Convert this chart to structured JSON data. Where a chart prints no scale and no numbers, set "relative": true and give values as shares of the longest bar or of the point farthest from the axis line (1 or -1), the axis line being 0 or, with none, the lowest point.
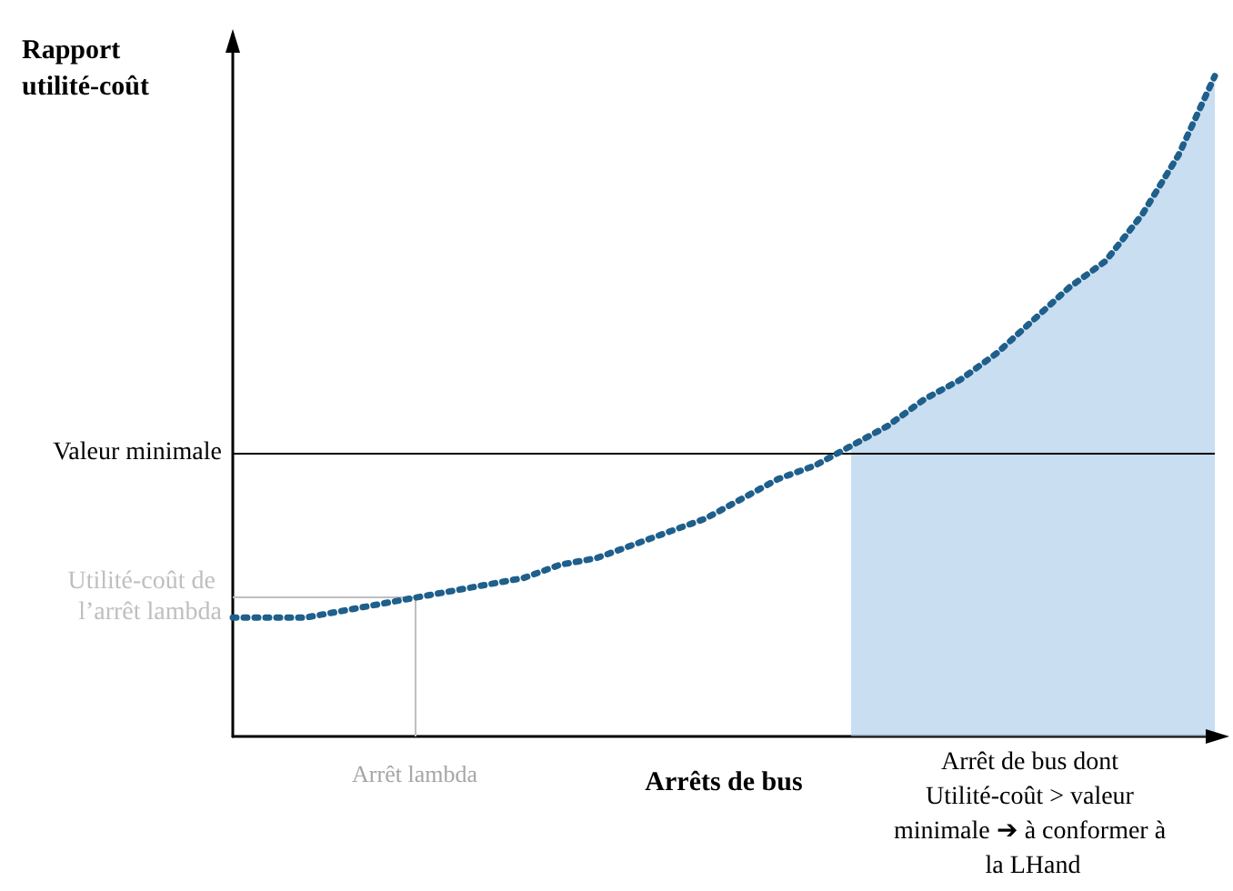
{
  "chart_data": {
    "type": "line",
    "relative": true,
    "ylabel": "Rapport utilité-coût",
    "xlabel": "Arrêts de bus",
    "categories": [
      null,
      null,
      null,
      null,
      null,
      null,
      null,
      null,
      null,
      null,
      null,
      null,
      null,
      null,
      null,
      null,
      null,
      null,
      null,
      null,
      null,
      null,
      null,
      null,
      null,
      null,
      null,
      null
    ],
    "series": [
      {
        "color": "#1f5f8b",
        "values": [
          0.18,
          0.18,
          0.18,
          0.19,
          0.2,
          0.21,
          0.22,
          0.23,
          0.24,
          0.26,
          0.27,
          0.29,
          0.31,
          0.33,
          0.36,
          0.39,
          0.41,
          0.44,
          0.47,
          0.51,
          0.54,
          0.58,
          0.63,
          0.68,
          0.72,
          0.79,
          0.88,
          1
        ]
      },
      {
        "type": "area",
        "color": "#9dc3e6",
        "values": [
          null,
          null,
          null,
          null,
          null,
          null,
          null,
          null,
          null,
          null,
          null,
          null,
          null,
          null,
          null,
          null,
          null,
          0.44,
          0.47,
          0.51,
          0.54,
          0.58,
          0.63,
          0.68,
          0.72,
          0.79,
          0.88,
          1
        ]
      }
    ],
    "ref_lines": [
      {
        "axis": "y",
        "value": 0.21,
        "label": "Utilité-coût de l’arrêt lambda",
        "color": "#bfbfbf"
      },
      {
        "axis": "x",
        "label": "Arrêt lambda",
        "color": "#bfbfbf"
      },
      {
        "axis": "y",
        "value": 0.43,
        "label": "Valeur minimale",
        "color": "#000000"
      }
    ],
    "annotations": [
      "Arrêt de bus dont Utilité-coût > valeur minimale ➔ à conformer à la LHand"
    ],
    "marker": "none",
    "line_style": "dotted",
    "grid": false
  }
}
